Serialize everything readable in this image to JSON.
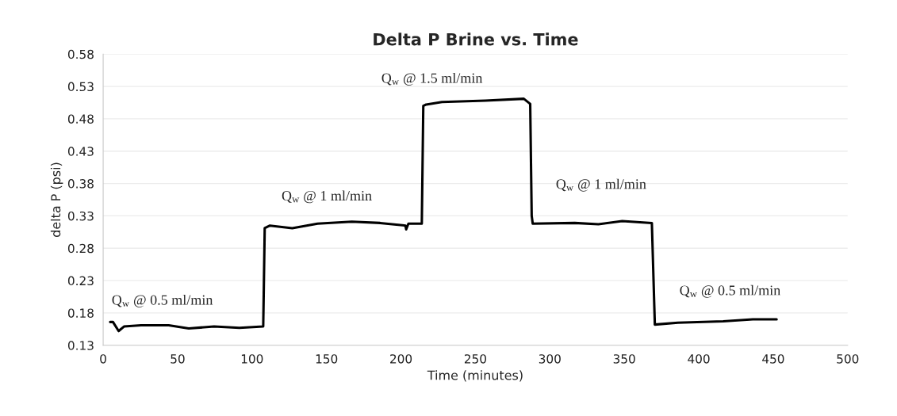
{
  "chart_data": {
    "type": "line",
    "title": "Delta P Brine vs. Time",
    "xlabel": "Time (minutes)",
    "ylabel": "delta P (psi)",
    "series": [
      {
        "color": "#000000",
        "x": [
          4.7,
          6.6,
          10.4,
          14,
          25.5,
          44,
          57.5,
          74.5,
          91.5,
          107.5,
          108.5,
          112,
          127,
          144,
          167,
          186,
          203,
          203.5,
          205,
          214,
          215,
          216.9,
          227.5,
          256.6,
          282.5,
          286.8,
          287.8,
          288.5,
          316.7,
          332.6,
          348.6,
          368.5,
          370.5,
          386,
          416.4,
          436.3,
          452.3
        ],
        "values": [
          0.166,
          0.166,
          0.152,
          0.159,
          0.161,
          0.161,
          0.156,
          0.159,
          0.157,
          0.159,
          0.311,
          0.315,
          0.311,
          0.318,
          0.321,
          0.319,
          0.315,
          0.309,
          0.318,
          0.318,
          0.5,
          0.502,
          0.506,
          0.508,
          0.511,
          0.503,
          0.33,
          0.318,
          0.319,
          0.317,
          0.322,
          0.319,
          0.162,
          0.165,
          0.167,
          0.17,
          0.17
        ]
      }
    ],
    "xlim": [
      0,
      500
    ],
    "xticks": [
      0,
      50,
      100,
      150,
      200,
      250,
      300,
      350,
      400,
      450,
      500
    ],
    "ylim": [
      0.13,
      0.58
    ],
    "yticks": [
      0.13,
      0.18,
      0.23,
      0.28,
      0.33,
      0.38,
      0.43,
      0.48,
      0.53,
      0.58
    ],
    "grid": "y",
    "marker": "none",
    "line_style": "solid",
    "annotations": [
      "Q$_{w}$ @ 0.5 ml/min",
      "Q$_{w}$ @ 1 ml/min",
      "Q$_{w}$ @ 1.5 ml/min",
      "Q$_{w}$ @ 1 ml/min",
      "Q$_{w}$ @ 0.5 ml/min"
    ]
  }
}
